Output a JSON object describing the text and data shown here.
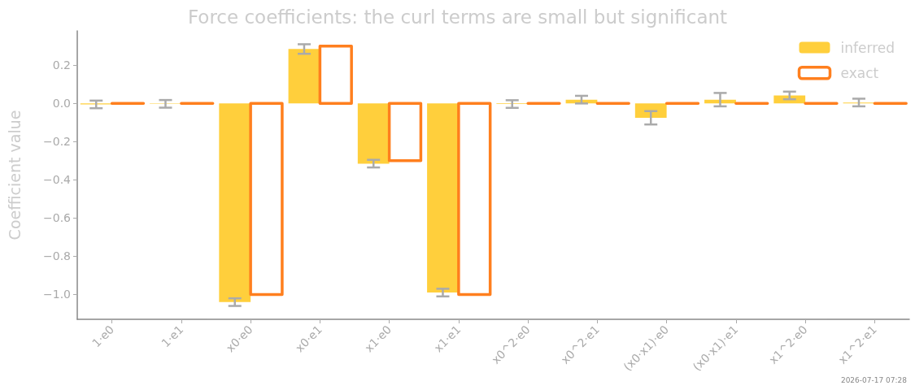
{
  "chart_data": {
    "type": "bar",
    "title": "Force coefficients: the curl terms are small but significant",
    "ylabel": "Coefficient value",
    "categories": [
      "1·e0",
      "1·e1",
      "x0·e0",
      "x0·e1",
      "x1·e0",
      "x1·e1",
      "x0^2·e0",
      "x0^2·e1",
      "(x0·x1)·e0",
      "(x0·x1)·e1",
      "x1^2·e0",
      "x1^2·e1"
    ],
    "series": [
      {
        "name": "inferred",
        "color": "#ffcf3c",
        "values": [
          -0.005,
          -0.002,
          -1.04,
          0.285,
          -0.315,
          -0.99,
          -0.003,
          0.02,
          -0.075,
          0.02,
          0.042,
          0.005
        ],
        "errors": [
          0.02,
          0.02,
          0.02,
          0.025,
          0.02,
          0.02,
          0.02,
          0.02,
          0.035,
          0.035,
          0.02,
          0.02
        ]
      },
      {
        "name": "exact",
        "color": "#ff7f1e",
        "values": [
          0,
          0,
          -1,
          0.3,
          -0.3,
          -1,
          0,
          0,
          0,
          0,
          0,
          0
        ]
      }
    ],
    "ylim": [
      -1.13,
      0.38
    ],
    "yticks": [
      {
        "value": -1.0,
        "label": "−1.0"
      },
      {
        "value": -0.8,
        "label": "−0.8"
      },
      {
        "value": -0.6,
        "label": "−0.6"
      },
      {
        "value": -0.4,
        "label": "−0.4"
      },
      {
        "value": -0.2,
        "label": "−0.2"
      },
      {
        "value": 0,
        "label": "0.0"
      },
      {
        "value": 0.2,
        "label": "0.2"
      }
    ],
    "grid": false,
    "legend": "top right",
    "annotations": [
      "2026-07-17 07:28"
    ]
  }
}
